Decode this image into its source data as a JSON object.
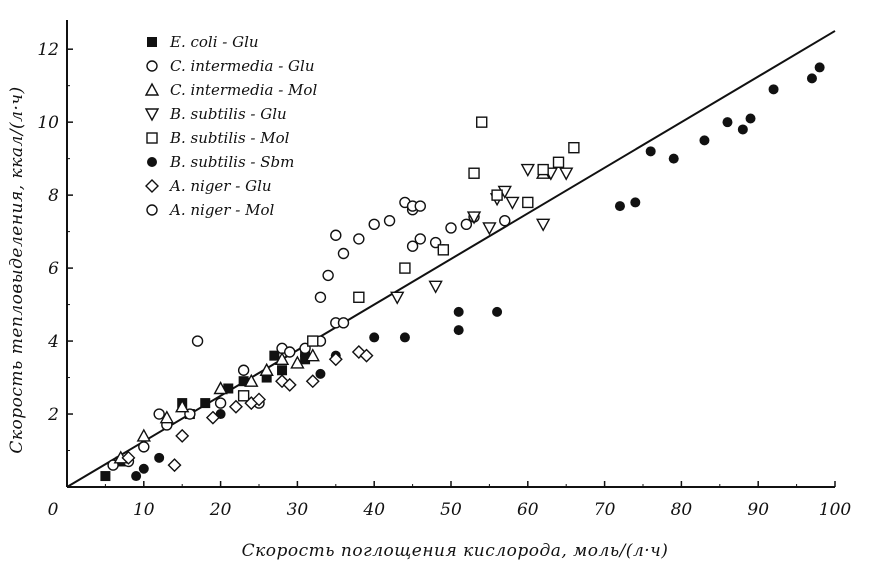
{
  "chart_data": {
    "type": "scatter",
    "title": "",
    "xlabel": "Скорость поглощения кислорода, моль/(л·ч)",
    "ylabel": "Скорость тепловыделения, ккал/(л·ч)",
    "xlim": [
      0,
      100
    ],
    "ylim": [
      0,
      12.8
    ],
    "x_ticks": [
      0,
      10,
      20,
      30,
      40,
      50,
      60,
      70,
      80,
      90,
      100
    ],
    "x_tick_labels": [
      "0",
      "10",
      "20",
      "30",
      "40",
      "50",
      "60",
      "70",
      "80",
      "90",
      "100"
    ],
    "y_ticks": [
      2,
      4,
      6,
      8,
      10,
      12
    ],
    "y_tick_labels": [
      "2",
      "4",
      "6",
      "8",
      "10",
      "12"
    ],
    "grid": false,
    "legend_position": "top-left",
    "fit_line": {
      "x": [
        0,
        100
      ],
      "y": [
        0,
        12.5
      ]
    },
    "series": [
      {
        "name": "E. coli - Glu",
        "marker": "square-filled",
        "x": [
          5,
          7,
          15,
          16,
          18,
          21,
          23,
          26,
          27,
          28,
          31,
          31
        ],
        "y": [
          0.3,
          0.7,
          2.3,
          2.0,
          2.3,
          2.7,
          2.9,
          3.0,
          3.6,
          3.2,
          3.5,
          3.7
        ]
      },
      {
        "name": "C. intermedia - Glu",
        "marker": "circle-open",
        "x": [
          6,
          8,
          10,
          12,
          13,
          16,
          20,
          23,
          25,
          28,
          29,
          31,
          33,
          35,
          36,
          36,
          38,
          40,
          42,
          45,
          46,
          48,
          49,
          50,
          52,
          53,
          57
        ],
        "y": [
          0.6,
          0.7,
          1.1,
          2.0,
          1.7,
          2.0,
          2.3,
          3.2,
          2.3,
          3.8,
          3.7,
          3.8,
          4.0,
          4.5,
          4.5,
          6.4,
          6.8,
          7.2,
          7.3,
          6.6,
          6.8,
          6.7,
          6.5,
          7.1,
          7.2,
          7.4,
          7.3
        ]
      },
      {
        "name": "C. intermedia - Mol",
        "marker": "triangle-up-open",
        "x": [
          7,
          10,
          13,
          15,
          20,
          24,
          26,
          28,
          30,
          32,
          62
        ],
        "y": [
          0.8,
          1.4,
          1.9,
          2.2,
          2.7,
          2.9,
          3.2,
          3.5,
          3.4,
          3.6,
          8.6
        ]
      },
      {
        "name": "B. subtilis - Glu",
        "marker": "triangle-down-open",
        "x": [
          43,
          48,
          53,
          55,
          56,
          57,
          58,
          60,
          62,
          63,
          65
        ],
        "y": [
          5.2,
          5.5,
          7.4,
          7.1,
          7.9,
          8.1,
          7.8,
          8.7,
          7.2,
          8.6,
          8.6
        ]
      },
      {
        "name": "B. subtilis - Mol",
        "marker": "square-open",
        "x": [
          23,
          32,
          38,
          44,
          49,
          53,
          54,
          56,
          60,
          62,
          64,
          66
        ],
        "y": [
          2.5,
          4.0,
          5.2,
          6.0,
          6.5,
          8.6,
          10.0,
          8.0,
          7.8,
          8.7,
          8.9,
          9.3
        ]
      },
      {
        "name": "B. subtilis - Sbm",
        "marker": "circle-filled",
        "x": [
          9,
          10,
          12,
          20,
          33,
          35,
          40,
          44,
          51,
          51,
          56,
          72,
          74,
          76,
          79,
          83,
          86,
          88,
          89,
          92,
          97,
          98
        ],
        "y": [
          0.3,
          0.5,
          0.8,
          2.0,
          3.1,
          3.6,
          4.1,
          4.1,
          4.8,
          4.3,
          4.8,
          7.7,
          7.8,
          9.2,
          9.0,
          9.5,
          10.0,
          9.8,
          10.1,
          10.9,
          11.2,
          11.5
        ]
      },
      {
        "name": "A. niger - Glu",
        "marker": "diamond-open",
        "x": [
          8,
          14,
          15,
          19,
          22,
          24,
          25,
          28,
          29,
          32,
          35,
          38,
          39
        ],
        "y": [
          0.8,
          0.6,
          1.4,
          1.9,
          2.2,
          2.3,
          2.4,
          2.9,
          2.8,
          2.9,
          3.5,
          3.7,
          3.6
        ]
      },
      {
        "name": "A. niger - Mol",
        "marker": "circle-open",
        "x": [
          17,
          33,
          34,
          35,
          44,
          45,
          45,
          46
        ],
        "y": [
          4.0,
          5.2,
          5.8,
          6.9,
          7.8,
          7.6,
          7.7,
          7.7
        ]
      }
    ]
  }
}
